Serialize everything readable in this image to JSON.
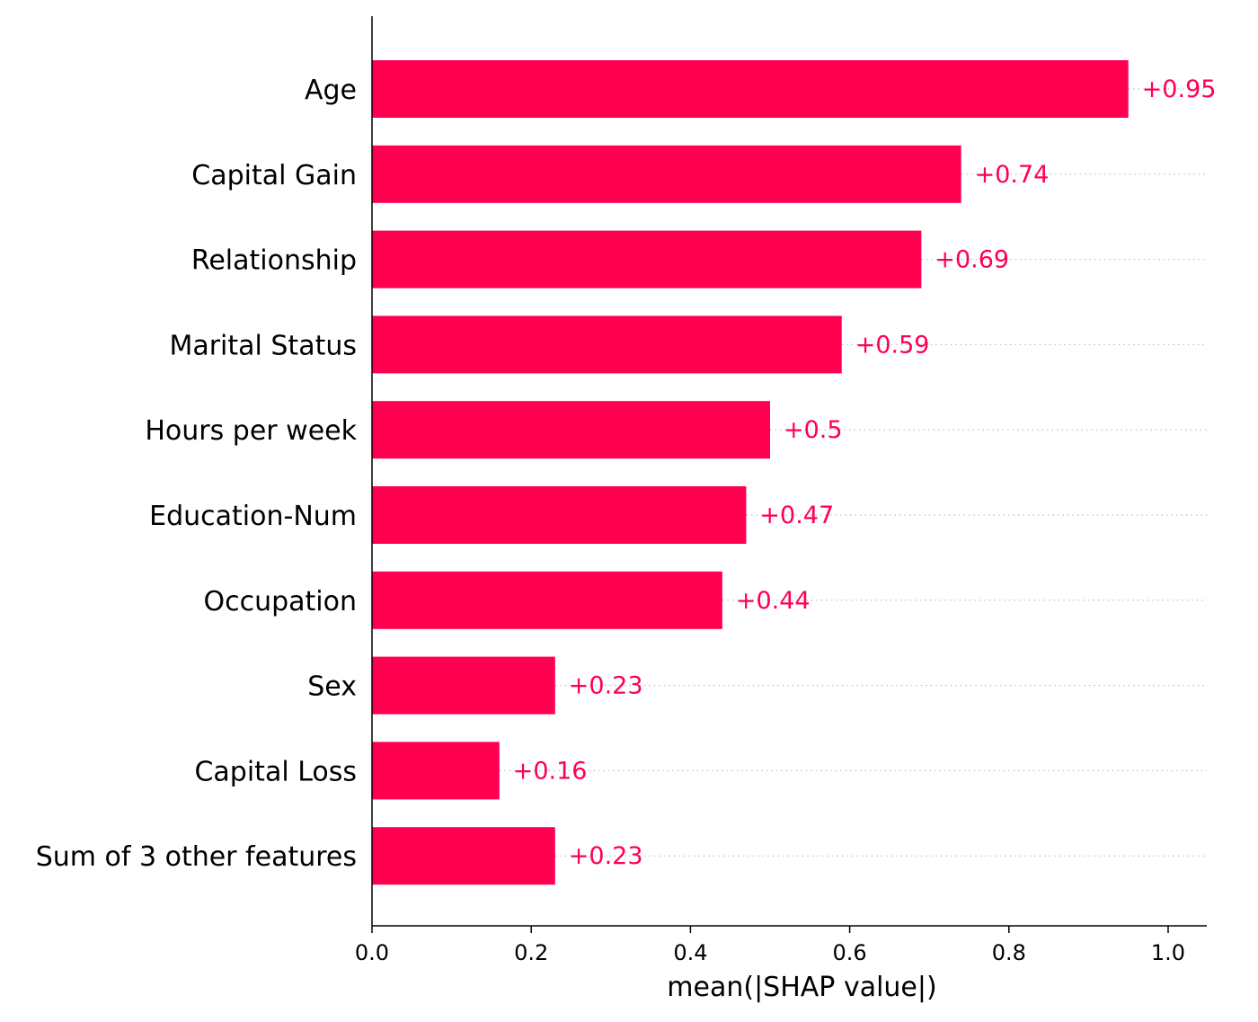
{
  "chart_data": {
    "type": "bar",
    "orientation": "horizontal",
    "categories": [
      "Age",
      "Capital Gain",
      "Relationship",
      "Marital Status",
      "Hours per week",
      "Education-Num",
      "Occupation",
      "Sex",
      "Capital Loss",
      "Sum of 3 other features"
    ],
    "values": [
      0.95,
      0.74,
      0.69,
      0.59,
      0.5,
      0.47,
      0.44,
      0.23,
      0.16,
      0.23
    ],
    "value_labels": [
      "+0.95",
      "+0.74",
      "+0.69",
      "+0.59",
      "+0.5",
      "+0.47",
      "+0.44",
      "+0.23",
      "+0.16",
      "+0.23"
    ],
    "xlabel": "mean(|SHAP value|)",
    "ylabel": "",
    "title": "",
    "xlim": [
      0,
      1.05
    ],
    "xticks": [
      0.0,
      0.2,
      0.4,
      0.6,
      0.8,
      1.0
    ],
    "xtick_labels": [
      "0.0",
      "0.2",
      "0.4",
      "0.6",
      "0.8",
      "1.0"
    ],
    "bar_color": "#ff0051",
    "grid": "dotted row guides",
    "legend": "none"
  }
}
